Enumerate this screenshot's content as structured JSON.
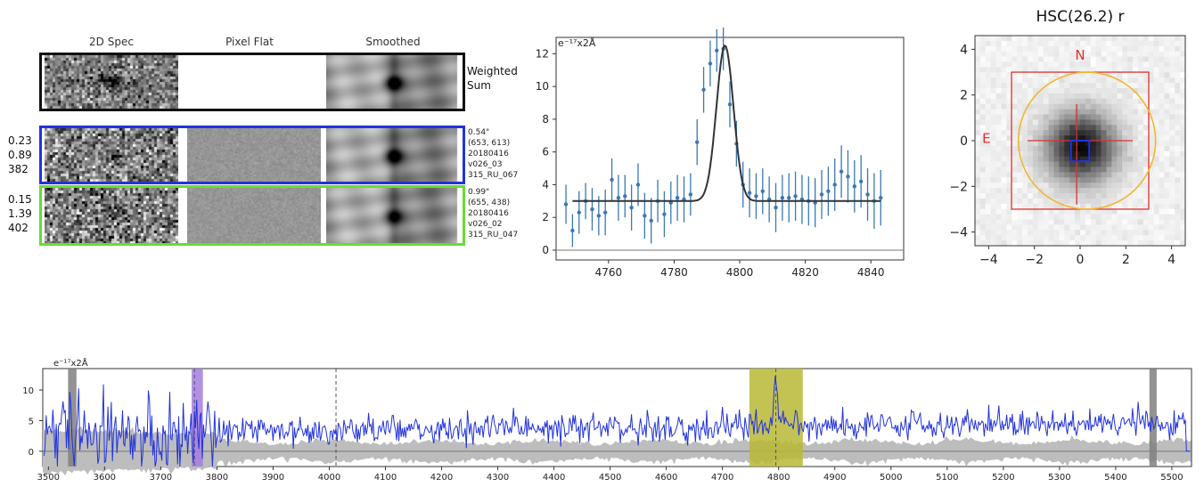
{
  "panel2d": {
    "headers": [
      "2D Spec",
      "Pixel Flat",
      "Smoothed"
    ],
    "weighted_label": "Weighted\nSum",
    "rows": [
      {
        "left": [
          "0.23",
          "0.89",
          "382"
        ],
        "note": "0.54\"\n(653, 613)\n20180416\nv026_03\n315_RU_067",
        "border": "#2233dd"
      },
      {
        "left": [
          "0.15",
          "1.39",
          "402"
        ],
        "note": "0.99\"\n(655, 438)\n20180416\nv026_02\n315_RU_047",
        "border": "#66dd33"
      }
    ],
    "top_border": "#111111"
  },
  "chart_data": [
    {
      "type": "scatter",
      "title": "",
      "ylabel": "e⁻¹⁷x2Å",
      "xlim": [
        4744,
        4850
      ],
      "ylim": [
        -0.6,
        13
      ],
      "xticks": [
        4760,
        4780,
        4800,
        4820,
        4840
      ],
      "yticks": [
        0,
        2,
        4,
        6,
        8,
        10,
        12
      ],
      "series": [
        {
          "kind": "points-with-errors",
          "color": "#3a78b5",
          "x": [
            4747,
            4749,
            4751,
            4753,
            4755,
            4757,
            4759,
            4761,
            4763,
            4765,
            4767,
            4769,
            4771,
            4773,
            4775,
            4777,
            4779,
            4781,
            4783,
            4785,
            4787,
            4789,
            4791,
            4793,
            4795,
            4797,
            4799,
            4801,
            4803,
            4805,
            4807,
            4809,
            4811,
            4813,
            4815,
            4817,
            4819,
            4821,
            4823,
            4825,
            4827,
            4829,
            4831,
            4833,
            4835,
            4837,
            4839,
            4841,
            4843
          ],
          "y": [
            2.8,
            1.2,
            2.3,
            3.0,
            2.5,
            2.1,
            2.3,
            4.3,
            3.2,
            3.3,
            2.6,
            4.0,
            2.1,
            1.8,
            3.0,
            2.2,
            2.9,
            3.2,
            3.1,
            3.4,
            6.6,
            9.8,
            11.4,
            12.2,
            12.3,
            8.9,
            6.5,
            4.0,
            3.5,
            3.3,
            3.6,
            3.1,
            2.6,
            3.2,
            3.2,
            3.3,
            3.1,
            3.0,
            2.9,
            3.4,
            3.6,
            4.0,
            4.8,
            4.5,
            3.9,
            4.2,
            3.4,
            3.0,
            3.2
          ],
          "err": [
            1.2,
            1.0,
            1.3,
            1.1,
            1.3,
            1.2,
            1.4,
            1.3,
            1.4,
            1.3,
            1.4,
            1.3,
            1.4,
            1.4,
            1.3,
            1.4,
            1.3,
            1.4,
            1.4,
            1.3,
            1.4,
            1.4,
            1.4,
            1.3,
            1.3,
            1.4,
            1.4,
            1.4,
            1.5,
            1.4,
            1.4,
            1.4,
            1.5,
            1.4,
            1.5,
            1.5,
            1.5,
            1.5,
            1.5,
            1.5,
            1.5,
            1.6,
            1.6,
            1.6,
            1.6,
            1.6,
            1.6,
            1.7,
            1.7
          ]
        },
        {
          "kind": "gaussian-fit",
          "color": "#333333",
          "baseline": 3.0,
          "amplitude": 9.5,
          "center": 4795.5,
          "sigma": 2.6
        }
      ]
    },
    {
      "type": "image",
      "title": "HSC(26.2) r",
      "xlim": [
        -4.6,
        4.6
      ],
      "ylim": [
        -4.6,
        4.6
      ],
      "xticks": [
        -4,
        -2,
        0,
        2,
        4
      ],
      "yticks": [
        -4,
        -2,
        0,
        2,
        4
      ],
      "labels": {
        "north": "N",
        "east": "E"
      },
      "circle": {
        "cx": 0.3,
        "cy": 0,
        "r": 3.0,
        "color": "#f2b630"
      },
      "square_outer": {
        "half": 3.0,
        "color": "#e03030"
      },
      "square_inner": {
        "x0": -0.4,
        "y0": -0.9,
        "x1": 0.4,
        "y1": 0.0,
        "color": "#2233dd"
      },
      "crosshair": {
        "x0": -2.3,
        "x1": 2.3,
        "y0": -2.8,
        "y1": 1.6,
        "color": "#e03030"
      }
    },
    {
      "type": "line",
      "title": "",
      "ylabel": "e⁻¹⁷x2Å",
      "xlim": [
        3490,
        5535
      ],
      "ylim": [
        -2.5,
        13.5
      ],
      "xticks": [
        3500,
        3600,
        3700,
        3800,
        3900,
        4000,
        4100,
        4200,
        4300,
        4400,
        4500,
        4600,
        4700,
        4800,
        4900,
        5000,
        5100,
        5200,
        5300,
        5400,
        5500
      ],
      "yticks": [
        0,
        5,
        10
      ],
      "bands": [
        {
          "x0": 3535,
          "x1": 3550,
          "color": "#808080"
        },
        {
          "x0": 3755,
          "x1": 3775,
          "color": "#a57ee0"
        },
        {
          "x0": 4748,
          "x1": 4843,
          "color": "#b8b835"
        },
        {
          "x0": 5460,
          "x1": 5473,
          "color": "#808080"
        }
      ],
      "vlines": [
        3760,
        4012,
        4795
      ],
      "line": {
        "baseline_start": 3.0,
        "baseline_end": 4.8,
        "peak_center": 4795,
        "peak_amp": 8.0,
        "peak_sigma": 3.5,
        "color": "#2233dd"
      }
    }
  ]
}
